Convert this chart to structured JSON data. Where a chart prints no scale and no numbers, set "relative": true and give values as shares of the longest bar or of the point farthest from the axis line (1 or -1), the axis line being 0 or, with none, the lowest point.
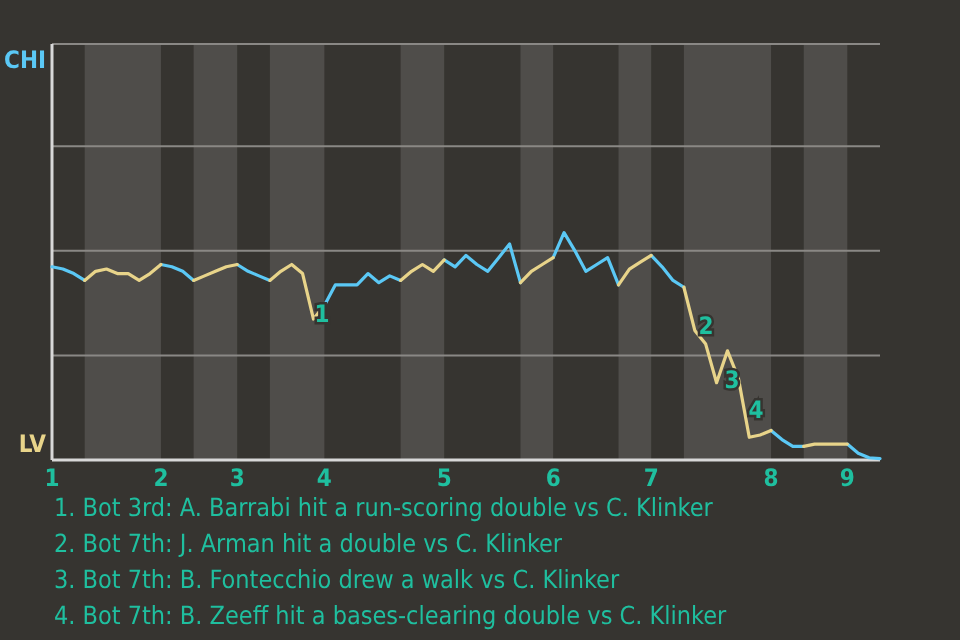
{
  "chart_data": {
    "type": "line",
    "relative": true,
    "categories": [
      "1",
      null,
      null,
      null,
      null,
      null,
      null,
      null,
      null,
      null,
      "2",
      null,
      null,
      null,
      null,
      null,
      null,
      "3",
      null,
      null,
      null,
      null,
      null,
      null,
      null,
      "4",
      null,
      null,
      null,
      null,
      null,
      null,
      null,
      null,
      null,
      null,
      "5",
      null,
      null,
      null,
      null,
      null,
      null,
      null,
      null,
      null,
      "6",
      null,
      null,
      null,
      null,
      null,
      null,
      null,
      null,
      "7",
      null,
      null,
      null,
      null,
      null,
      null,
      null,
      null,
      null,
      null,
      "8",
      null,
      null,
      null,
      null,
      null,
      null,
      "9",
      null,
      null,
      null
    ],
    "marker": "none",
    "line_style": "solid",
    "series": [
      {
        "color": "#5bc8f5",
        "values": [
          0.85,
          0.84,
          0.82,
          0.79,
          null,
          null,
          null,
          null,
          null,
          null,
          0.86,
          0.85,
          0.83,
          0.79,
          null,
          null,
          null,
          0.86,
          0.83,
          0.81,
          0.79,
          null,
          null,
          null,
          null,
          0.68,
          0.77,
          0.77,
          0.77,
          0.82,
          0.78,
          0.81,
          0.79,
          null,
          null,
          null,
          0.88,
          0.85,
          0.9,
          0.86,
          0.83,
          0.89,
          0.95,
          0.78,
          null,
          null,
          0.89,
          1,
          0.92,
          0.83,
          0.86,
          0.89,
          0.77,
          null,
          null,
          0.9,
          0.85,
          0.79,
          0.76,
          null,
          null,
          null,
          null,
          null,
          null,
          null,
          0.13,
          0.09,
          0.06,
          0.06,
          null,
          null,
          null,
          0.07,
          0.03,
          0.01,
          0.006
        ]
      },
      {
        "color": "#e8d48a",
        "values": [
          null,
          null,
          null,
          0.79,
          0.83,
          0.84,
          0.82,
          0.82,
          0.79,
          0.82,
          0.86,
          null,
          null,
          0.79,
          0.81,
          0.83,
          0.85,
          0.86,
          null,
          null,
          0.79,
          0.83,
          0.86,
          0.82,
          0.62,
          0.68,
          null,
          null,
          null,
          null,
          null,
          null,
          0.79,
          0.83,
          0.86,
          0.83,
          0.88,
          null,
          null,
          null,
          null,
          null,
          null,
          0.78,
          0.83,
          0.86,
          0.89,
          null,
          null,
          null,
          null,
          null,
          0.77,
          0.84,
          0.87,
          0.9,
          null,
          null,
          0.76,
          0.57,
          0.51,
          0.34,
          0.48,
          0.36,
          0.1,
          0.11,
          0.13,
          null,
          null,
          0.06,
          0.07,
          0.07,
          0.07,
          0.07,
          null,
          null,
          null
        ]
      }
    ],
    "ref_lines": [
      {
        "axis": "y",
        "value": 0.46,
        "color": "#8a8885"
      },
      {
        "axis": "y",
        "value": 0.92,
        "color": "#8a8885"
      },
      {
        "axis": "y",
        "value": 1.38,
        "color": "#8a8885"
      },
      {
        "axis": "y",
        "value": 1.83,
        "color": "#8a8885"
      }
    ],
    "annotations": [
      "CHI",
      "LV",
      "1",
      "2",
      "3",
      "4",
      "1. Bot 3rd: A. Barrabi hit a run-scoring double vs C. Klinker",
      "2. Bot 7th: J. Arman hit a double vs C. Klinker",
      "3. Bot 7th: B. Fontecchio drew a walk vs C. Klinker",
      "4. Bot 7th: B. Zeeff hit a bases-clearing double vs C. Klinker"
    ]
  }
}
